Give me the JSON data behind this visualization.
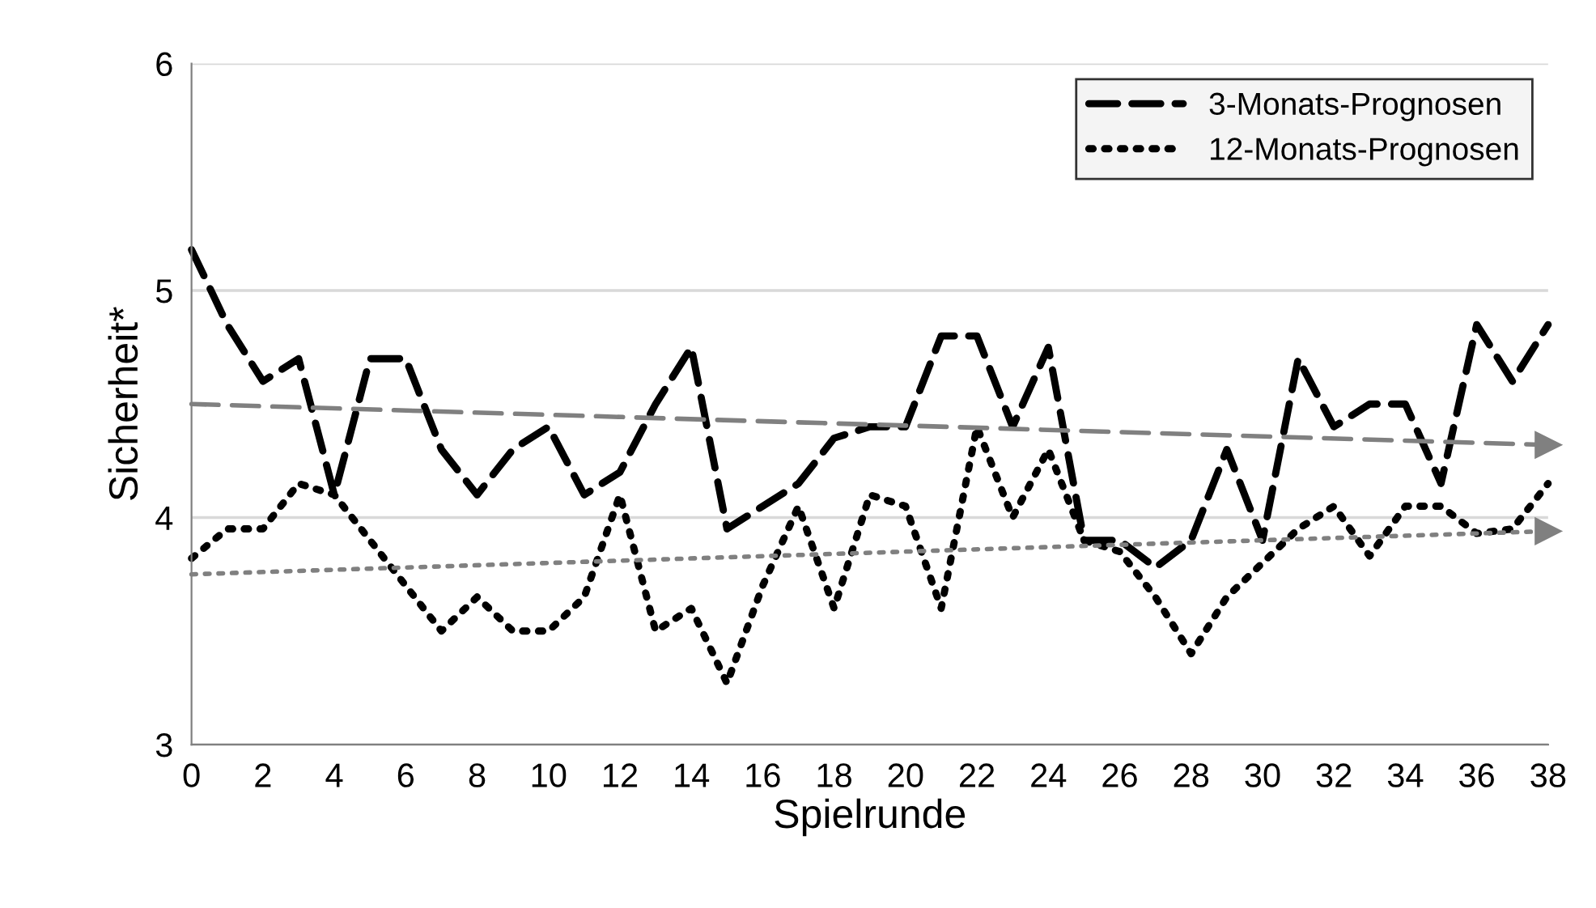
{
  "chart_data": {
    "type": "line",
    "xlabel": "Spielrunde",
    "ylabel": "Sicherheit*",
    "xlim": [
      0,
      38
    ],
    "xticks": [
      0,
      2,
      4,
      6,
      8,
      10,
      12,
      14,
      16,
      18,
      20,
      22,
      24,
      26,
      28,
      30,
      32,
      34,
      36,
      38
    ],
    "ylim": [
      3,
      6
    ],
    "yticks": [
      3,
      4,
      5,
      6
    ],
    "grid": "y",
    "legend": "top right",
    "series": [
      {
        "name": "3-Monats-Prognosen",
        "color": "#000000",
        "line_style": "dashed",
        "x": [
          0,
          1,
          2,
          3,
          4,
          5,
          6,
          7,
          8,
          9,
          10,
          11,
          12,
          13,
          14,
          15,
          16,
          17,
          18,
          19,
          20,
          21,
          22,
          23,
          24,
          25,
          26,
          27,
          28,
          29,
          30,
          31,
          32,
          33,
          34,
          35,
          36,
          37,
          38
        ],
        "values": [
          5.18,
          4.85,
          4.6,
          4.7,
          4.1,
          4.7,
          4.7,
          4.3,
          4.1,
          4.3,
          4.4,
          4.1,
          4.2,
          4.5,
          4.75,
          3.95,
          4.05,
          4.15,
          4.35,
          4.4,
          4.4,
          4.8,
          4.8,
          4.4,
          4.75,
          3.9,
          3.9,
          3.78,
          3.9,
          4.3,
          3.9,
          4.7,
          4.4,
          4.5,
          4.5,
          4.15,
          4.85,
          4.6,
          4.85
        ]
      },
      {
        "name": "12-Monats-Prognosen",
        "color": "#000000",
        "line_style": "dotted",
        "x": [
          0,
          1,
          2,
          3,
          4,
          5,
          6,
          7,
          8,
          9,
          10,
          11,
          12,
          13,
          14,
          15,
          16,
          17,
          18,
          19,
          20,
          21,
          22,
          23,
          24,
          25,
          26,
          27,
          28,
          29,
          30,
          31,
          32,
          33,
          34,
          35,
          36,
          37,
          38
        ],
        "values": [
          3.82,
          3.95,
          3.95,
          4.15,
          4.1,
          3.9,
          3.7,
          3.5,
          3.65,
          3.5,
          3.5,
          3.65,
          4.1,
          3.5,
          3.6,
          3.27,
          3.7,
          4.05,
          3.6,
          4.1,
          4.05,
          3.6,
          4.4,
          4.0,
          4.3,
          3.9,
          3.85,
          3.65,
          3.4,
          3.65,
          3.8,
          3.95,
          4.05,
          3.83,
          4.05,
          4.05,
          3.93,
          3.95,
          4.15
        ]
      },
      {
        "color": "#808080",
        "line_style": "dashed",
        "marker": "triangle",
        "x": [
          0,
          38
        ],
        "values": [
          4.5,
          4.32
        ]
      },
      {
        "color": "#808080",
        "line_style": "dotted",
        "marker": "triangle",
        "x": [
          0,
          38
        ],
        "values": [
          3.75,
          3.94
        ]
      }
    ]
  }
}
